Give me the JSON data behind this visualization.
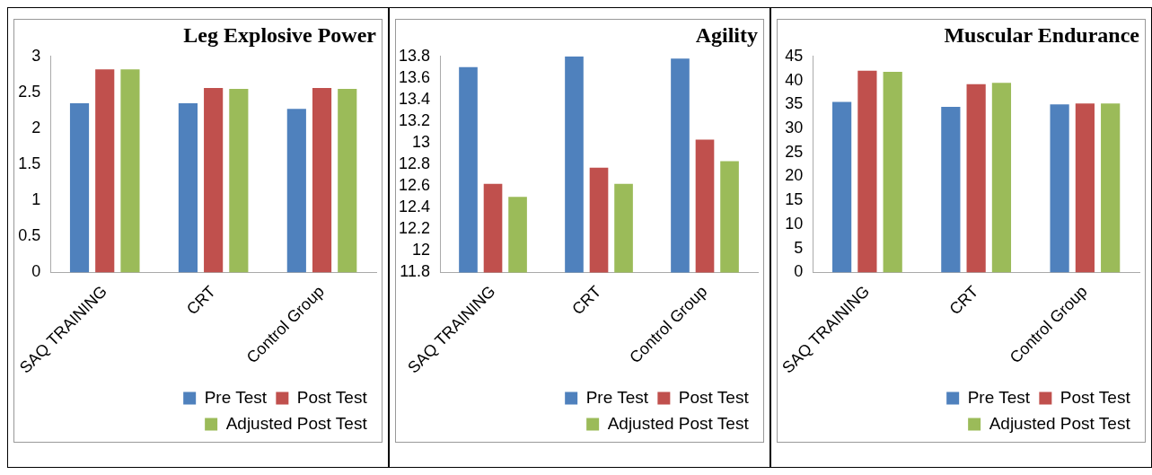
{
  "chart_data": [
    {
      "type": "bar",
      "title": "Leg Explosive Power",
      "categories": [
        "SAQ TRAINING",
        "CRT",
        "Control Group"
      ],
      "series": [
        {
          "name": "Pre Test",
          "color": "#4f81bd",
          "values": [
            2.35,
            2.35,
            2.27
          ]
        },
        {
          "name": "Post Test",
          "color": "#c0504d",
          "values": [
            2.82,
            2.56,
            2.56
          ]
        },
        {
          "name": "Adjusted Post Test",
          "color": "#9bbb59",
          "values": [
            2.82,
            2.55,
            2.55
          ]
        }
      ],
      "ylim": [
        0,
        3
      ],
      "yticks": [
        0,
        0.5,
        1,
        1.5,
        2,
        2.5,
        3
      ],
      "grid": false,
      "legend": "bottom right"
    },
    {
      "type": "bar",
      "title": "Agility",
      "categories": [
        "SAQ TRAINING",
        "CRT",
        "Control Group"
      ],
      "series": [
        {
          "name": "Pre Test",
          "color": "#4f81bd",
          "values": [
            13.7,
            13.8,
            13.78
          ]
        },
        {
          "name": "Post Test",
          "color": "#c0504d",
          "values": [
            12.62,
            12.77,
            13.03
          ]
        },
        {
          "name": "Adjusted Post Test",
          "color": "#9bbb59",
          "values": [
            12.5,
            12.62,
            12.83
          ]
        }
      ],
      "ylim": [
        11.8,
        13.8
      ],
      "yticks": [
        11.8,
        12,
        12.2,
        12.4,
        12.6,
        12.8,
        13,
        13.2,
        13.4,
        13.6,
        13.8
      ],
      "grid": false,
      "legend": "bottom right"
    },
    {
      "type": "bar",
      "title": "Muscular Endurance",
      "categories": [
        "SAQ TRAINING",
        "CRT",
        "Control Group"
      ],
      "series": [
        {
          "name": "Pre Test",
          "color": "#4f81bd",
          "values": [
            35.5,
            34.5,
            35
          ]
        },
        {
          "name": "Post Test",
          "color": "#c0504d",
          "values": [
            42,
            39.2,
            35.2
          ]
        },
        {
          "name": "Adjusted Post Test",
          "color": "#9bbb59",
          "values": [
            41.8,
            39.5,
            35.2
          ]
        }
      ],
      "ylim": [
        0,
        45
      ],
      "yticks": [
        0,
        5,
        10,
        15,
        20,
        25,
        30,
        35,
        40,
        45
      ],
      "grid": false,
      "legend": "bottom right"
    }
  ]
}
